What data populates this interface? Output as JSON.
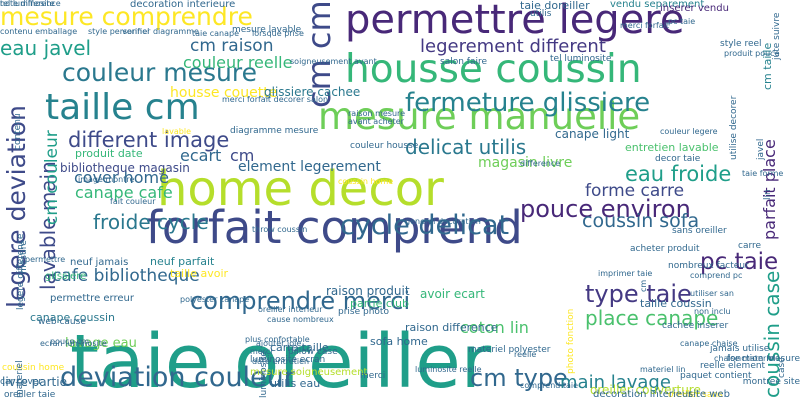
{
  "words": [
    {
      "text": "taie oreiller",
      "color": "#1f9e89",
      "vertical": false
    },
    {
      "text": "home decor",
      "color": "#b5de2b",
      "vertical": false
    },
    {
      "text": "forfait comprend",
      "color": "#3e4a89",
      "vertical": false
    },
    {
      "text": "permettre legere",
      "color": "#482878",
      "vertical": false
    },
    {
      "text": "housse coussin",
      "color": "#35b779",
      "vertical": false
    },
    {
      "text": "mesure manuelle",
      "color": "#6ece58",
      "vertical": false
    },
    {
      "text": "taille cm",
      "color": "#26828e",
      "vertical": false
    },
    {
      "text": "cm cm",
      "color": "#3e4a89",
      "vertical": true
    },
    {
      "text": "deviation couleur",
      "color": "#31688e",
      "vertical": false
    },
    {
      "text": "cycle delicat",
      "color": "#31688e",
      "vertical": false
    },
    {
      "text": "fermeture glissiere",
      "color": "#26828e",
      "vertical": false
    },
    {
      "text": "couleur mesure",
      "color": "#2a788e",
      "vertical": false
    },
    {
      "text": "mesure comprendre",
      "color": "#fde725",
      "vertical": false
    },
    {
      "text": "legere deviation",
      "color": "#3e4a89",
      "vertical": true
    },
    {
      "text": "comprendre merci",
      "color": "#31688e",
      "vertical": false
    },
    {
      "text": "type taie",
      "color": "#443983",
      "vertical": false
    },
    {
      "text": "pouce environ",
      "color": "#482878",
      "vertical": false
    },
    {
      "text": "eau froide",
      "color": "#1f9e89",
      "vertical": false
    },
    {
      "text": "cm type",
      "color": "#31688e",
      "vertical": false
    },
    {
      "text": "lavable main",
      "color": "#3e4a89",
      "vertical": true
    },
    {
      "text": "different image",
      "color": "#3e4a89",
      "vertical": false
    },
    {
      "text": "froide cycle",
      "color": "#2a788e",
      "vertical": false
    },
    {
      "text": "coussin sofa",
      "color": "#31688e",
      "vertical": false
    },
    {
      "text": "delicat utilis",
      "color": "#2a788e",
      "vertical": false
    },
    {
      "text": "eau javel",
      "color": "#1f9e89",
      "vertical": false
    },
    {
      "text": "legerement different",
      "color": "#443983",
      "vertical": false
    },
    {
      "text": "cm raison",
      "color": "#31688e",
      "vertical": false
    },
    {
      "text": "couleur reelle",
      "color": "#35b779",
      "vertical": false
    },
    {
      "text": "place canape",
      "color": "#4ac16d",
      "vertical": false
    },
    {
      "text": "coussin case",
      "color": "#1f9e89",
      "vertical": true
    },
    {
      "text": "main lavage",
      "color": "#26828e",
      "vertical": false
    },
    {
      "text": "cafe bibliotheque",
      "color": "#31688e",
      "vertical": false
    },
    {
      "text": "canape cafe",
      "color": "#35b779",
      "vertical": false
    },
    {
      "text": "cover home",
      "color": "#31688e",
      "vertical": false
    },
    {
      "text": "cm couleur",
      "color": "#1f9e89",
      "vertical": true
    },
    {
      "text": "forme carre",
      "color": "#3e4a89",
      "vertical": false
    },
    {
      "text": "coton lin",
      "color": "#4ac16d",
      "vertical": false
    },
    {
      "text": "parfait place",
      "color": "#482878",
      "vertical": true
    },
    {
      "text": "pc taie",
      "color": "#482878",
      "vertical": false
    },
    {
      "text": "ecart",
      "color": "#31688e",
      "vertical": false
    },
    {
      "text": "cm",
      "color": "#3e4a89",
      "vertical": false
    },
    {
      "text": "housse couette",
      "color": "#fde725",
      "vertical": false
    },
    {
      "text": "glissiere cachee",
      "color": "#2a788e",
      "vertical": false
    },
    {
      "text": "magasin livre",
      "color": "#6ece58",
      "vertical": false
    },
    {
      "text": "element legerement",
      "color": "#31688e",
      "vertical": false
    },
    {
      "text": "lavage eau",
      "color": "#6ece58",
      "vertical": false
    },
    {
      "text": "canape coussin",
      "color": "#2a788e",
      "vertical": false
    },
    {
      "text": "livre partie",
      "color": "#31688e",
      "vertical": false
    },
    {
      "text": "utilis eau",
      "color": "#31688e",
      "vertical": false
    },
    {
      "text": "oreiller couverture",
      "color": "#b5de2b",
      "vertical": false
    },
    {
      "text": "bibliotheque magasin",
      "color": "#3e4a89",
      "vertical": false
    },
    {
      "text": "raison produit",
      "color": "#31688e",
      "vertical": false
    },
    {
      "text": "avoir ecart",
      "color": "#35b779",
      "vertical": false
    },
    {
      "text": "taille avoir",
      "color": "#fde725",
      "vertical": false
    },
    {
      "text": "neuf parfait",
      "color": "#26828e",
      "vertical": false
    },
    {
      "text": "canape light",
      "color": "#31688e",
      "vertical": false
    },
    {
      "text": "produit date",
      "color": "#35b779",
      "vertical": false
    },
    {
      "text": "taille coussin",
      "color": "#31688e",
      "vertical": false
    },
    {
      "text": "raison difference",
      "color": "#31688e",
      "vertical": false
    },
    {
      "text": "carre taille",
      "color": "#31688e",
      "vertical": false
    },
    {
      "text": "sofa home",
      "color": "#31688e",
      "vertical": false
    },
    {
      "text": "partie club",
      "color": "#35b779",
      "vertical": false
    },
    {
      "text": "entretien lavable",
      "color": "#4ac16d",
      "vertical": false
    },
    {
      "text": "taie doreiller",
      "color": "#31688e",
      "vertical": false
    },
    {
      "text": "decoration interieure",
      "color": "#31688e",
      "vertical": false
    },
    {
      "text": "vendu separement",
      "color": "#26828e",
      "vertical": false
    },
    {
      "text": "inserer vendu",
      "color": "#482878",
      "vertical": false
    },
    {
      "text": "cm taille",
      "color": "#26828e",
      "vertical": true
    },
    {
      "text": "mesure soigneusement",
      "color": "#b5de2b",
      "vertical": false
    },
    {
      "text": "glissiere",
      "color": "#35b779",
      "vertical": false
    },
    {
      "text": "permettre erreur",
      "color": "#31688e",
      "vertical": false
    },
    {
      "text": "neuf jamais",
      "color": "#31688e",
      "vertical": false
    },
    {
      "text": "jamais utilise",
      "color": "#31688e",
      "vertical": false
    },
    {
      "text": "cachee inserer",
      "color": "#31688e",
      "vertical": false
    },
    {
      "text": "materiel polyester",
      "color": "#31688e",
      "vertical": false
    },
    {
      "text": "luminosite ecran",
      "color": "#31688e",
      "vertical": false
    },
    {
      "text": "paquet contient",
      "color": "#31688e",
      "vertical": false
    },
    {
      "text": "reelle element",
      "color": "#31688e",
      "vertical": false
    },
    {
      "text": "fonction mesure",
      "color": "#31688e",
      "vertical": false
    },
    {
      "text": "montree site",
      "color": "#31688e",
      "vertical": false
    },
    {
      "text": "acheter produit",
      "color": "#31688e",
      "vertical": false
    },
    {
      "text": "car cover",
      "color": "#31688e",
      "vertical": false
    },
    {
      "text": "coussin home",
      "color": "#fde725",
      "vertical": false
    },
    {
      "text": "oreiller taie",
      "color": "#31688e",
      "vertical": false
    },
    {
      "text": "web cause",
      "color": "#31688e",
      "vertical": false
    },
    {
      "text": "merci",
      "color": "#31688e",
      "vertical": false
    },
    {
      "text": "utilis",
      "color": "#31688e",
      "vertical": false
    },
    {
      "text": "sans oreiller",
      "color": "#31688e",
      "vertical": false
    },
    {
      "text": "oreiller sans",
      "color": "#fde725",
      "vertical": false
    },
    {
      "text": "carre",
      "color": "#31688e",
      "vertical": false
    },
    {
      "text": "decor taie",
      "color": "#31688e",
      "vertical": false
    },
    {
      "text": "nombreux facteur",
      "color": "#31688e",
      "vertical": false
    },
    {
      "text": "tel luminosite",
      "color": "#31688e",
      "vertical": false
    },
    {
      "text": "merci forfait",
      "color": "#31688e",
      "vertical": false
    },
    {
      "text": "couleur housse",
      "color": "#31688e",
      "vertical": false
    },
    {
      "text": "prise photo",
      "color": "#31688e",
      "vertical": false
    },
    {
      "text": "difference",
      "color": "#31688e",
      "vertical": false
    },
    {
      "text": "mesure lavable",
      "color": "#31688e",
      "vertical": false
    },
    {
      "text": "lavable",
      "color": "#fde725",
      "vertical": false
    },
    {
      "text": "permettre",
      "color": "#31688e",
      "vertical": false
    },
    {
      "text": "diagramme mesure",
      "color": "#31688e",
      "vertical": false
    },
    {
      "text": "pouce cm",
      "color": "#31688e",
      "vertical": false
    },
    {
      "text": "merci",
      "color": "#31688e",
      "vertical": false
    },
    {
      "text": "cause nombreux",
      "color": "#31688e",
      "vertical": false
    },
    {
      "text": "pillow case",
      "color": "#31688e",
      "vertical": false
    },
    {
      "text": "materiel lin",
      "color": "#31688e",
      "vertical": false
    },
    {
      "text": "coussin home",
      "color": "#fde725",
      "vertical": false
    },
    {
      "text": "imprimer taie",
      "color": "#31688e",
      "vertical": false
    },
    {
      "text": "ajouter joie",
      "color": "#31688e",
      "vertical": false
    },
    {
      "text": "image montre",
      "color": "#31688e",
      "vertical": false
    },
    {
      "text": "avant acheter",
      "color": "#31688e",
      "vertical": false
    },
    {
      "text": "raison mesure",
      "color": "#31688e",
      "vertical": false
    },
    {
      "text": "throw coussin",
      "color": "#31688e",
      "vertical": false
    },
    {
      "text": "fait couleur",
      "color": "#31688e",
      "vertical": false
    },
    {
      "text": "style personnel",
      "color": "#31688e",
      "vertical": false
    },
    {
      "text": "verifier diagramme",
      "color": "#31688e",
      "vertical": false
    },
    {
      "text": "taie canape",
      "color": "#31688e",
      "vertical": false
    },
    {
      "text": "lorsque prise",
      "color": "#31688e",
      "vertical": false
    },
    {
      "text": "contenu emballage",
      "color": "#31688e",
      "vertical": false
    },
    {
      "text": "soigneusement avant",
      "color": "#31688e",
      "vertical": false
    },
    {
      "text": "salon faire",
      "color": "#31688e",
      "vertical": false
    },
    {
      "text": "merci forfait decorer salon",
      "color": "#31688e",
      "vertical": false
    },
    {
      "text": "couleur legere",
      "color": "#31688e",
      "vertical": false
    },
    {
      "text": "plus confortable",
      "color": "#31688e",
      "vertical": false
    },
    {
      "text": "general decoration",
      "color": "#31688e",
      "vertical": false
    },
    {
      "text": "taie forme",
      "color": "#31688e",
      "vertical": false
    },
    {
      "text": "style reel",
      "color": "#31688e",
      "vertical": false
    },
    {
      "text": "produit pouce",
      "color": "#31688e",
      "vertical": false
    },
    {
      "text": "decoration interieur",
      "color": "#31688e",
      "vertical": false
    },
    {
      "text": "site web",
      "color": "#31688e",
      "vertical": false
    },
    {
      "text": "photo fonction",
      "color": "#fde725",
      "vertical": true
    },
    {
      "text": "luminosite",
      "color": "#31688e",
      "vertical": true
    },
    {
      "text": "materiel",
      "color": "#31688e",
      "vertical": true
    },
    {
      "text": "mesure",
      "color": "#31688e",
      "vertical": true
    },
    {
      "text": "contenu",
      "color": "#31688e",
      "vertical": true
    },
    {
      "text": "legere difference",
      "color": "#31688e",
      "vertical": true
    },
    {
      "text": "javel",
      "color": "#31688e",
      "vertical": true
    },
    {
      "text": "utilise decorer",
      "color": "#31688e",
      "vertical": true
    },
    {
      "text": "jute suivre",
      "color": "#31688e",
      "vertical": true
    },
    {
      "text": "case",
      "color": "#31688e",
      "vertical": true
    },
    {
      "text": "lin",
      "color": "#31688e",
      "vertical": true
    },
    {
      "text": "cm",
      "color": "#31688e",
      "vertical": true
    },
    {
      "text": "comprend pc",
      "color": "#31688e",
      "vertical": false
    },
    {
      "text": "ecran luminosite",
      "color": "#31688e",
      "vertical": false
    },
    {
      "text": "pc taie",
      "color": "#31688e",
      "vertical": false
    },
    {
      "text": "oreiller interieur",
      "color": "#31688e",
      "vertical": false
    },
    {
      "text": "date entretien",
      "color": "#31688e",
      "vertical": false
    },
    {
      "text": "reelle",
      "color": "#31688e",
      "vertical": false
    },
    {
      "text": "chaise materiel",
      "color": "#31688e",
      "vertical": false
    },
    {
      "text": "canape chaise",
      "color": "#31688e",
      "vertical": false
    },
    {
      "text": "non inclu",
      "color": "#31688e",
      "vertical": false
    },
    {
      "text": "polyester canape",
      "color": "#31688e",
      "vertical": false
    },
    {
      "text": "luminosite reelle",
      "color": "#31688e",
      "vertical": false
    },
    {
      "text": "comprend taie",
      "color": "#31688e",
      "vertical": false
    },
    {
      "text": "utiliser san",
      "color": "#31688e",
      "vertical": false
    },
    {
      "text": "note difference",
      "color": "#31688e",
      "vertical": false
    },
    {
      "text": "tel luminosite",
      "color": "#31688e",
      "vertical": false
    }
  ]
}
